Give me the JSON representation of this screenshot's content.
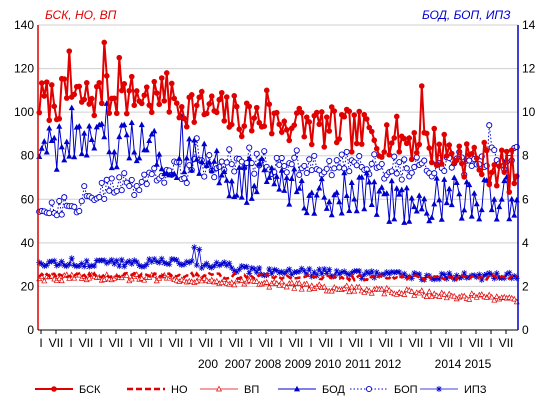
{
  "chart_data": {
    "type": "line",
    "title": "",
    "left_axis_label": "БСК, НО, ВП",
    "right_axis_label": "БОД, БОП, ИПЗ",
    "left_axis_color": "#e00000",
    "right_axis_color": "#0000cc",
    "ylim_left": [
      0,
      140
    ],
    "yticks_left": [
      "0",
      "20",
      "40",
      "60",
      "80",
      "100",
      "120",
      "140"
    ],
    "ylim_right": [
      0,
      14
    ],
    "yticks_right": [
      "0",
      "2",
      "4",
      "6",
      "8",
      "10",
      "12",
      "14"
    ],
    "x_month_ticks": [
      "I",
      "VII",
      "I",
      "VII",
      "I",
      "VII",
      "I",
      "VII",
      "I",
      "VII",
      "I",
      "VII",
      "I",
      "VII",
      "I",
      "VII",
      "I",
      "VII",
      "I",
      "VII",
      "I",
      "VII",
      "I",
      "VII",
      "I",
      "VII",
      "I",
      "VII",
      "I",
      "VII",
      "I",
      "VII"
    ],
    "x_year_labels": [
      {
        "label": "200",
        "tick": 11
      },
      {
        "label": "2007",
        "tick": 13
      },
      {
        "label": "2008",
        "tick": 15
      },
      {
        "label": "2009",
        "tick": 17
      },
      {
        "label": "2010",
        "tick": 19
      },
      {
        "label": "2011",
        "tick": 21
      },
      {
        "label": "2012",
        "tick": 23
      },
      {
        "label": "2014",
        "tick": 27
      },
      {
        "label": "2015",
        "tick": 29
      }
    ],
    "months_total": 192,
    "series": [
      {
        "name": "БСК",
        "axis": "left",
        "color": "#e00000",
        "line": "solid",
        "width": 2,
        "marker": "filled-circle",
        "trend": [
          [
            0,
            105
          ],
          [
            40,
            108
          ],
          [
            80,
            98
          ],
          [
            120,
            92
          ],
          [
            150,
            87
          ],
          [
            170,
            80
          ],
          [
            191,
            72
          ]
        ],
        "amplitude": 10,
        "spikes": [
          [
            12,
            128
          ],
          [
            26,
            132
          ],
          [
            32,
            125
          ],
          [
            51,
            118
          ],
          [
            91,
            110
          ],
          [
            153,
            112
          ]
        ]
      },
      {
        "name": "НО",
        "axis": "left",
        "color": "#e00000",
        "line": "dashed",
        "width": 2.5,
        "marker": "none",
        "trend": [
          [
            0,
            25
          ],
          [
            60,
            25
          ],
          [
            120,
            24
          ],
          [
            191,
            24
          ]
        ],
        "amplitude": 1.2,
        "spikes": []
      },
      {
        "name": "ВП",
        "axis": "left",
        "color": "#e00000",
        "line": "solid",
        "width": 0.8,
        "marker": "hollow-triangle",
        "trend": [
          [
            0,
            24
          ],
          [
            50,
            24
          ],
          [
            80,
            22
          ],
          [
            120,
            19
          ],
          [
            150,
            17
          ],
          [
            191,
            14
          ]
        ],
        "amplitude": 1.5,
        "spikes": []
      },
      {
        "name": "БОД",
        "axis": "right",
        "color": "#0000cc",
        "line": "solid",
        "width": 1,
        "marker": "filled-triangle",
        "trend": [
          [
            0,
            8.2
          ],
          [
            40,
            8.5
          ],
          [
            80,
            7.0
          ],
          [
            120,
            6.2
          ],
          [
            150,
            6.0
          ],
          [
            191,
            6.0
          ]
        ],
        "amplitude": 1.1,
        "spikes": [
          [
            13,
            10.2
          ],
          [
            27,
            10.4
          ],
          [
            57,
            9.8
          ]
        ]
      },
      {
        "name": "БОП",
        "axis": "right",
        "color": "#0000cc",
        "line": "dotted",
        "width": 1,
        "marker": "hollow-circle",
        "trend": [
          [
            0,
            5.5
          ],
          [
            40,
            6.8
          ],
          [
            80,
            7.8
          ],
          [
            120,
            7.6
          ],
          [
            150,
            7.4
          ],
          [
            191,
            8.0
          ]
        ],
        "amplitude": 0.6,
        "spikes": [
          [
            63,
            8.8
          ],
          [
            180,
            9.4
          ]
        ]
      },
      {
        "name": "ИПЗ",
        "axis": "right",
        "color": "#0000cc",
        "line": "solid",
        "width": 0.8,
        "marker": "asterisk",
        "trend": [
          [
            0,
            3.1
          ],
          [
            60,
            3.1
          ],
          [
            90,
            2.7
          ],
          [
            150,
            2.5
          ],
          [
            191,
            2.5
          ]
        ],
        "amplitude": 0.2,
        "spikes": [
          [
            62,
            3.8
          ],
          [
            64,
            3.7
          ]
        ]
      }
    ]
  },
  "legend": {
    "placement": "bottom",
    "items": [
      "БСК",
      "НО",
      "ВП",
      "БОД",
      "БОП",
      "ИПЗ"
    ]
  }
}
